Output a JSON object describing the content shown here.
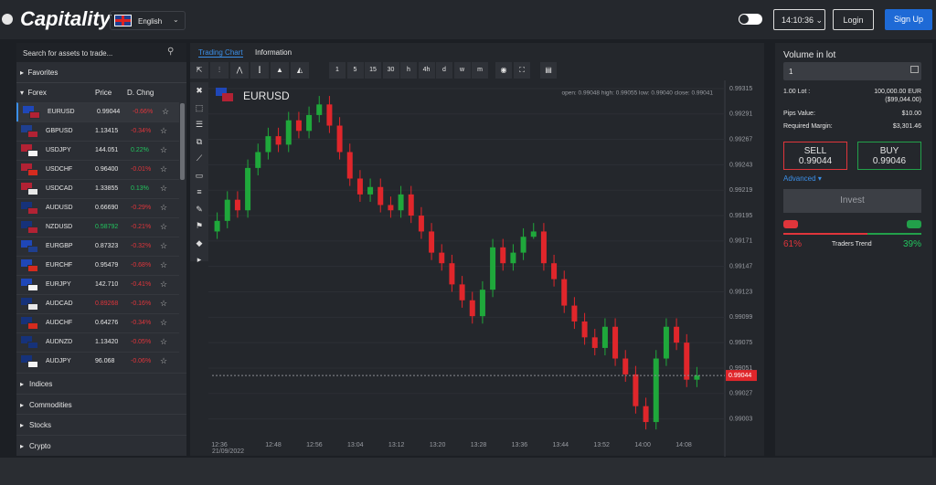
{
  "header": {
    "logo": "Capitality",
    "language": "English",
    "clock": "14:10:36",
    "login": "Login",
    "signup": "Sign Up"
  },
  "sidebar": {
    "search_placeholder": "Search for assets to trade...",
    "favorites": "Favorites",
    "forex": "Forex",
    "col_price": "Price",
    "col_change": "D. Chng",
    "assets": [
      {
        "symbol": "EURUSD",
        "price": "0.99044",
        "change": "-0.66%"
      },
      {
        "symbol": "GBPUSD",
        "price": "1.13415",
        "change": "-0.34%"
      },
      {
        "symbol": "USDJPY",
        "price": "144.051",
        "change": "0.22%"
      },
      {
        "symbol": "USDCHF",
        "price": "0.96400",
        "change": "-0.01%"
      },
      {
        "symbol": "USDCAD",
        "price": "1.33855",
        "change": "0.13%"
      },
      {
        "symbol": "AUDUSD",
        "price": "0.66690",
        "change": "-0.29%"
      },
      {
        "symbol": "NZDUSD",
        "price": "0.58792",
        "change": "-0.21%",
        "price_color": "#22c55e"
      },
      {
        "symbol": "EURGBP",
        "price": "0.87323",
        "change": "-0.32%"
      },
      {
        "symbol": "EURCHF",
        "price": "0.95479",
        "change": "-0.68%"
      },
      {
        "symbol": "EURJPY",
        "price": "142.710",
        "change": "-0.41%"
      },
      {
        "symbol": "AUDCAD",
        "price": "0.89268",
        "change": "-0.16%",
        "price_color": "#e0353b"
      },
      {
        "symbol": "AUDCHF",
        "price": "0.64276",
        "change": "-0.34%"
      },
      {
        "symbol": "AUDNZD",
        "price": "1.13420",
        "change": "-0.05%"
      },
      {
        "symbol": "AUDJPY",
        "price": "96.068",
        "change": "-0.06%"
      }
    ],
    "categories": [
      "Indices",
      "Commodities",
      "Stocks",
      "Crypto"
    ]
  },
  "tabs": [
    "Trading Chart",
    "Information"
  ],
  "toolbar": {
    "intervals": [
      "1",
      "5",
      "15",
      "30",
      "h",
      "4h",
      "d",
      "w",
      "m"
    ]
  },
  "chart_data": {
    "type": "candlestick",
    "symbol": "EURUSD",
    "ohlc_label": "open: 0.99048 high: 0.99055 low: 0.99040 close: 0.99041",
    "time_labels": [
      "12:36",
      "12:48",
      "12:56",
      "13:04",
      "13:12",
      "13:20",
      "13:28",
      "13:36",
      "13:44",
      "13:52",
      "14:00",
      "14:08"
    ],
    "date_label": "21/09/2022",
    "ylim": [
      0.98969,
      0.99321
    ],
    "yticks": [
      0.99315,
      0.99291,
      0.99267,
      0.99243,
      0.99219,
      0.99195,
      0.99171,
      0.99147,
      0.99123,
      0.99099,
      0.99075,
      0.99051,
      0.99027,
      0.99003
    ],
    "up_color": "#1fa83b",
    "down_color": "#e0262b",
    "open": [
      0.9918,
      0.9919,
      0.9921,
      0.992,
      0.9924,
      0.99255,
      0.9927,
      0.99262,
      0.99285,
      0.99275,
      0.9929,
      0.993,
      0.9928,
      0.99255,
      0.9923,
      0.99215,
      0.99222,
      0.99205,
      0.992,
      0.99215,
      0.99195,
      0.9918,
      0.9916,
      0.9915,
      0.9913,
      0.99115,
      0.991,
      0.99125,
      0.99165,
      0.9915,
      0.9916,
      0.99175,
      0.9918,
      0.9915,
      0.99135,
      0.9911,
      0.99095,
      0.9908,
      0.9907,
      0.9909,
      0.9906,
      0.99045,
      0.99015,
      0.99,
      0.9906,
      0.9909,
      0.99075,
      0.9904
    ],
    "high": [
      0.99198,
      0.99218,
      0.99218,
      0.99248,
      0.99263,
      0.99278,
      0.99278,
      0.99293,
      0.99293,
      0.99298,
      0.99308,
      0.99308,
      0.99288,
      0.99263,
      0.99238,
      0.9923,
      0.9923,
      0.99213,
      0.99223,
      0.99223,
      0.99203,
      0.99188,
      0.99168,
      0.99158,
      0.99138,
      0.99123,
      0.99133,
      0.99173,
      0.99173,
      0.99168,
      0.99183,
      0.99188,
      0.99188,
      0.99158,
      0.99143,
      0.99118,
      0.99103,
      0.99088,
      0.99098,
      0.99098,
      0.99068,
      0.99053,
      0.99023,
      0.99068,
      0.99098,
      0.99098,
      0.99083,
      0.99052
    ],
    "low": [
      0.99173,
      0.99183,
      0.99193,
      0.99193,
      0.99233,
      0.99248,
      0.99255,
      0.99255,
      0.99268,
      0.99268,
      0.99283,
      0.99273,
      0.99248,
      0.99223,
      0.99208,
      0.99208,
      0.99198,
      0.99193,
      0.99193,
      0.99188,
      0.99173,
      0.99153,
      0.99143,
      0.99123,
      0.99108,
      0.99093,
      0.99093,
      0.99118,
      0.99143,
      0.99143,
      0.99153,
      0.99173,
      0.99143,
      0.99128,
      0.99103,
      0.99088,
      0.99073,
      0.99063,
      0.99063,
      0.99053,
      0.99038,
      0.99008,
      0.98993,
      0.98993,
      0.99053,
      0.99068,
      0.99033,
      0.99033
    ],
    "close": [
      0.9919,
      0.9921,
      0.992,
      0.9924,
      0.99255,
      0.9927,
      0.99262,
      0.99285,
      0.99275,
      0.9929,
      0.993,
      0.9928,
      0.99255,
      0.9923,
      0.99215,
      0.99222,
      0.99205,
      0.992,
      0.99215,
      0.99195,
      0.9918,
      0.9916,
      0.9915,
      0.9913,
      0.99115,
      0.991,
      0.99125,
      0.99165,
      0.9915,
      0.9916,
      0.99175,
      0.9918,
      0.9915,
      0.99135,
      0.9911,
      0.99095,
      0.9908,
      0.9907,
      0.9909,
      0.9906,
      0.99045,
      0.99015,
      0.99,
      0.9906,
      0.9909,
      0.99075,
      0.9904,
      0.99044
    ],
    "last_price": 0.99044
  },
  "order_panel": {
    "volume_label": "Volume in lot",
    "volume": "1",
    "lot_label": "1.00 Lot :",
    "lot_value": "100,000.00 EUR",
    "lot_usd": "($99,044.00)",
    "pips_label": "Pips Value:",
    "pips_value": "$10.00",
    "margin_label": "Required Margin:",
    "margin_value": "$3,301.46",
    "sell": "SELL",
    "sell_price": "0.99044",
    "buy": "BUY",
    "buy_price": "0.99046",
    "advanced": "Advanced",
    "invest": "Invest",
    "sellers": {
      "value": 61,
      "label": "61%"
    },
    "trend_label": "Traders Trend",
    "buyers": {
      "value": 39,
      "label": "39%"
    }
  }
}
